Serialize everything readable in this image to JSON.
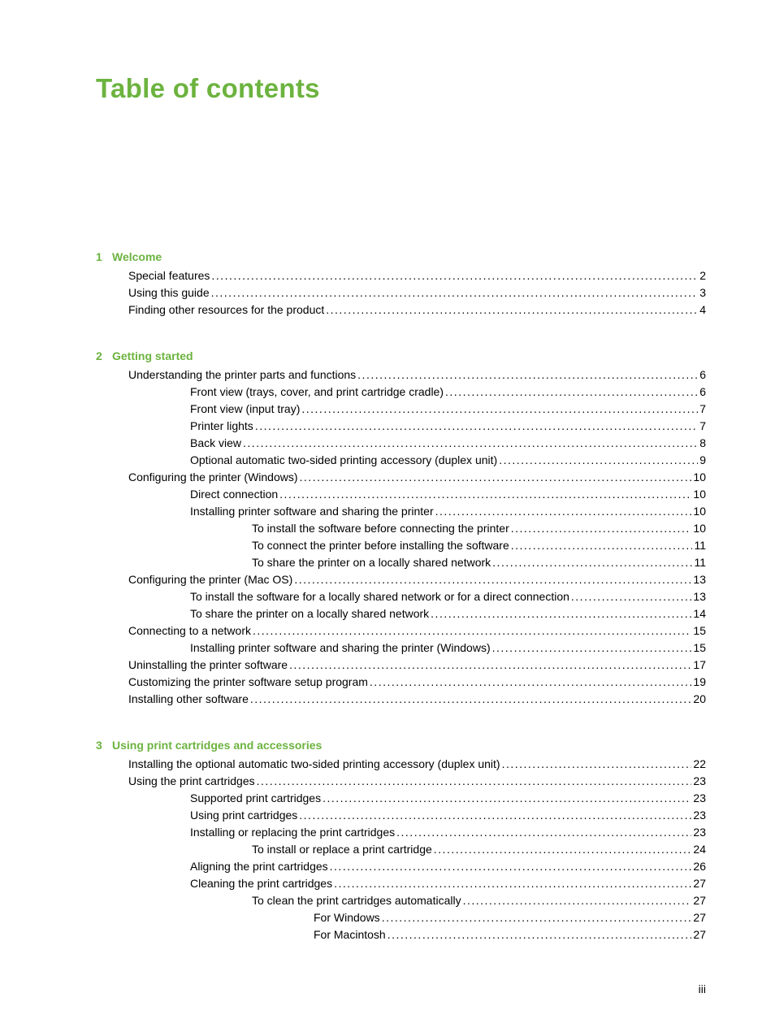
{
  "title": "Table of contents",
  "title_color": "#6cb33f",
  "text_color": "#000000",
  "background_color": "#ffffff",
  "title_fontsize": 33,
  "body_fontsize": 14,
  "line_height": 1.5,
  "page_number": "iii",
  "sections": [
    {
      "num": "1",
      "title": "Welcome",
      "entries": [
        {
          "label": "Special features",
          "page": "2",
          "indent": 1
        },
        {
          "label": "Using this guide",
          "page": "3",
          "indent": 1
        },
        {
          "label": "Finding other resources for the product",
          "page": "4",
          "indent": 1
        }
      ]
    },
    {
      "num": "2",
      "title": "Getting started",
      "entries": [
        {
          "label": "Understanding the printer parts and functions",
          "page": "6",
          "indent": 1
        },
        {
          "label": "Front view (trays, cover, and print cartridge cradle)",
          "page": "6",
          "indent": 2
        },
        {
          "label": "Front view (input tray)",
          "page": "7",
          "indent": 2
        },
        {
          "label": "Printer lights",
          "page": "7",
          "indent": 2
        },
        {
          "label": "Back view",
          "page": "8",
          "indent": 2
        },
        {
          "label": "Optional automatic two-sided printing accessory (duplex unit)",
          "page": "9",
          "indent": 2
        },
        {
          "label": "Configuring the printer (Windows)",
          "page": "10",
          "indent": 1
        },
        {
          "label": "Direct connection",
          "page": "10",
          "indent": 2
        },
        {
          "label": "Installing printer software and sharing the printer",
          "page": "10",
          "indent": 2
        },
        {
          "label": "To install the software before connecting the printer",
          "page": "10",
          "indent": 3
        },
        {
          "label": "To connect the printer before installing the software",
          "page": "11",
          "indent": 3
        },
        {
          "label": "To share the printer on a locally shared network",
          "page": "11",
          "indent": 3
        },
        {
          "label": "Configuring the printer (Mac OS)",
          "page": "13",
          "indent": 1
        },
        {
          "label": "To install the software for a locally shared network or for a direct connection",
          "page": "13",
          "indent": 2
        },
        {
          "label": "To share the printer on a locally shared network",
          "page": "14",
          "indent": 2
        },
        {
          "label": "Connecting to a network",
          "page": "15",
          "indent": 1
        },
        {
          "label": "Installing printer software and sharing the printer (Windows)",
          "page": "15",
          "indent": 2
        },
        {
          "label": "Uninstalling the printer software",
          "page": "17",
          "indent": 1
        },
        {
          "label": "Customizing the printer software setup program",
          "page": "19",
          "indent": 1
        },
        {
          "label": "Installing other software",
          "page": "20",
          "indent": 1
        }
      ]
    },
    {
      "num": "3",
      "title": "Using print cartridges and accessories",
      "entries": [
        {
          "label": "Installing the optional automatic two-sided printing accessory (duplex unit)",
          "page": "22",
          "indent": 1
        },
        {
          "label": "Using the print cartridges",
          "page": "23",
          "indent": 1
        },
        {
          "label": "Supported print cartridges",
          "page": "23",
          "indent": 2
        },
        {
          "label": "Using print cartridges",
          "page": "23",
          "indent": 2
        },
        {
          "label": "Installing or replacing the print cartridges",
          "page": "23",
          "indent": 2
        },
        {
          "label": "To install or replace a print cartridge",
          "page": "24",
          "indent": 3
        },
        {
          "label": "Aligning the print cartridges",
          "page": "26",
          "indent": 2
        },
        {
          "label": "Cleaning the print cartridges",
          "page": "27",
          "indent": 2
        },
        {
          "label": "To clean the print cartridges automatically",
          "page": "27",
          "indent": 3
        },
        {
          "label": "For Windows",
          "page": "27",
          "indent": 4
        },
        {
          "label": "For Macintosh",
          "page": "27",
          "indent": 4
        }
      ]
    }
  ]
}
